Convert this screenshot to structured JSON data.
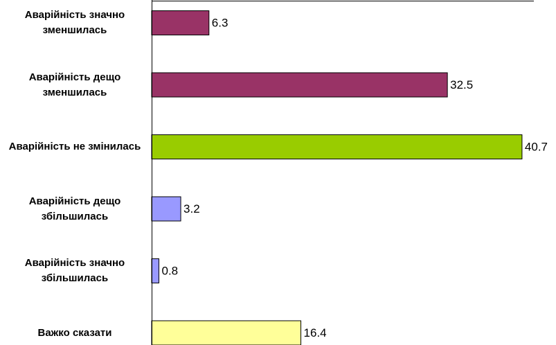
{
  "chart_data": {
    "type": "bar",
    "orientation": "horizontal",
    "categories": [
      "Аварійність значно зменшилась",
      "Аварійність дещо зменшилась",
      "Аварійність не змінилась",
      "Аварійність дещо збільшилась",
      "Аварійність значно збільшилась",
      "Важко сказати"
    ],
    "values": [
      6.3,
      32.5,
      40.7,
      3.2,
      0.8,
      16.4
    ],
    "colors": [
      "#993366",
      "#993366",
      "#99cc00",
      "#9999ff",
      "#9999ff",
      "#ffff99"
    ],
    "xlim": [
      0,
      42
    ]
  }
}
